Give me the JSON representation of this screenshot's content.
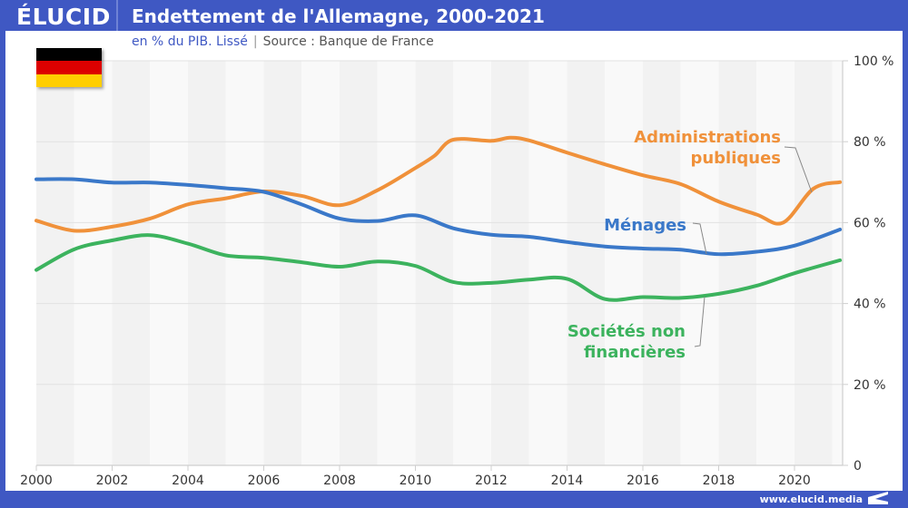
{
  "header": {
    "logo": "ÉLUCID",
    "title": "Endettement de l'Allemagne, 2000-2021",
    "subtitle_primary": "en % du PIB. Lissé",
    "subtitle_separator": "|",
    "subtitle_source": "Source : Banque de France"
  },
  "flag": {
    "country": "Germany",
    "colors": [
      "#000000",
      "#dd0000",
      "#ffce00"
    ]
  },
  "footer": {
    "url": "www.elucid.media"
  },
  "colors": {
    "frame": "#3f58c3"
  },
  "chart_data": {
    "type": "line",
    "title": "Endettement de l'Allemagne, 2000-2021",
    "subtitle": "en % du PIB. Lissé | Source : Banque de France",
    "xlabel": "",
    "ylabel": "",
    "xlim": [
      2000,
      2021.3
    ],
    "ylim": [
      0,
      100
    ],
    "x_ticks": [
      2000,
      2002,
      2004,
      2006,
      2008,
      2010,
      2012,
      2014,
      2016,
      2018,
      2020
    ],
    "x_tick_labels": [
      "2000",
      "2002",
      "2004",
      "2006",
      "2008",
      "2010",
      "2012",
      "2014",
      "2016",
      "2018",
      "2020"
    ],
    "y_ticks": [
      0,
      20,
      40,
      60,
      80,
      100
    ],
    "y_tick_labels": [
      "0",
      "20 %",
      "40 %",
      "60 %",
      "80 %",
      "100 %"
    ],
    "y_axis_side": "right",
    "grid": true,
    "legend": "inline-labels",
    "series": [
      {
        "name": "Administrations publiques",
        "label_lines": [
          "Administrations",
          "publiques"
        ],
        "color": "#f0913a",
        "x": [
          2000,
          2001,
          2002,
          2003,
          2004,
          2005,
          2006,
          2007,
          2008,
          2009,
          2010,
          2010.5,
          2011,
          2012,
          2012.5,
          2013,
          2014,
          2015,
          2016,
          2017,
          2018,
          2019,
          2019.7,
          2020.5,
          2021.2
        ],
        "values": [
          60.5,
          58.0,
          59.0,
          61.0,
          64.5,
          66.0,
          67.7,
          66.6,
          64.3,
          68.0,
          73.5,
          76.5,
          80.5,
          80.2,
          81.0,
          80.3,
          77.3,
          74.4,
          71.7,
          69.5,
          65.2,
          62.0,
          60.0,
          68.4,
          70.0
        ]
      },
      {
        "name": "Ménages",
        "label_lines": [
          "Ménages"
        ],
        "color": "#3a78c9",
        "x": [
          2000,
          2001,
          2002,
          2003,
          2004,
          2005,
          2006,
          2007,
          2008,
          2009,
          2010,
          2011,
          2012,
          2013,
          2014,
          2015,
          2016,
          2017,
          2018,
          2019,
          2020,
          2021.2
        ],
        "values": [
          70.7,
          70.7,
          69.9,
          69.9,
          69.3,
          68.5,
          67.6,
          64.5,
          61.0,
          60.4,
          61.8,
          58.6,
          57.0,
          56.5,
          55.2,
          54.1,
          53.6,
          53.3,
          52.2,
          52.8,
          54.3,
          58.3
        ]
      },
      {
        "name": "Sociétés non financières",
        "label_lines": [
          "Sociétés non",
          "financières"
        ],
        "color": "#3cb35e",
        "x": [
          2000,
          2001,
          2002,
          2003,
          2004,
          2005,
          2006,
          2007,
          2008,
          2009,
          2010,
          2011,
          2012,
          2013,
          2014,
          2015,
          2016,
          2017,
          2018,
          2019,
          2020,
          2021.2
        ],
        "values": [
          48.3,
          53.4,
          55.6,
          56.9,
          54.8,
          51.9,
          51.3,
          50.2,
          49.1,
          50.4,
          49.3,
          45.3,
          45.1,
          45.9,
          46.1,
          41.1,
          41.6,
          41.4,
          42.4,
          44.4,
          47.5,
          50.7
        ]
      }
    ]
  }
}
